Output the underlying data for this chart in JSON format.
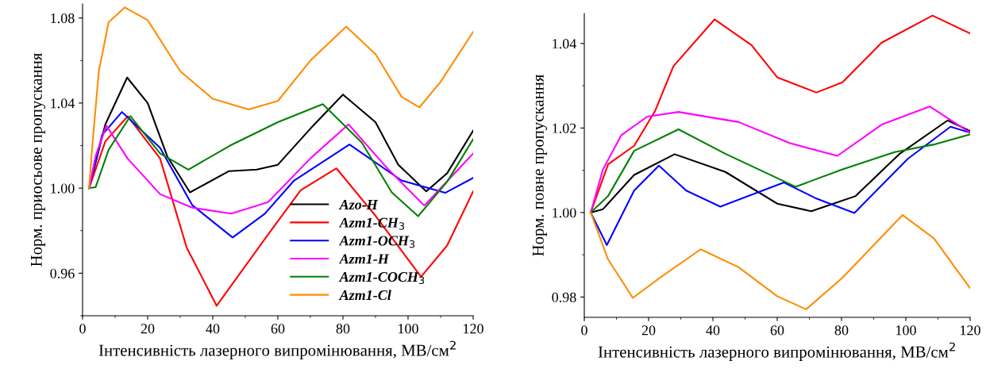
{
  "chart_data": [
    {
      "type": "line",
      "xlabel": "Інтенсивність лазерного випромінювання, МВ/см$^{2}$",
      "ylabel": "Норм. приосьове пропускання",
      "xlim": [
        0,
        120
      ],
      "ylim": [
        0.94,
        1.0866
      ],
      "xticks": [
        0,
        {
          "value": 10,
          "label": null
        },
        20,
        {
          "value": 30,
          "label": null
        },
        40,
        {
          "value": 50,
          "label": null
        },
        60,
        {
          "value": 70,
          "label": null
        },
        80,
        {
          "value": 90,
          "label": null
        },
        100,
        {
          "value": 110,
          "label": null
        },
        120
      ],
      "yticks": [
        {
          "value": 0.94,
          "label": null
        },
        {
          "value": 0.96,
          "label": "0.96"
        },
        {
          "value": 0.98,
          "label": null
        },
        {
          "value": 1.0,
          "label": "1.00"
        },
        {
          "value": 1.02,
          "label": null
        },
        {
          "value": 1.04,
          "label": "1.04"
        },
        {
          "value": 1.06,
          "label": null
        },
        {
          "value": 1.08,
          "label": "1.08"
        }
      ],
      "grid": false,
      "legend": "bottom center",
      "line_style": "solid",
      "marker": "none",
      "series": [
        {
          "name": "Azo-H",
          "color": "#000000",
          "x": [
            2,
            7,
            13.7,
            20,
            26,
            33,
            45,
            53.5,
            60,
            70,
            80,
            90,
            97,
            105.6,
            112,
            120
          ],
          "values": [
            1.0,
            1.03,
            1.052,
            1.04,
            1.015,
            0.998,
            1.008,
            1.0087,
            1.011,
            1.028,
            1.044,
            1.031,
            1.011,
            0.9985,
            1.007,
            1.027
          ]
        },
        {
          "name": "Azm1-CH$_{3}$",
          "color": "#ff0000",
          "x": [
            2,
            7,
            13.9,
            23.8,
            32,
            41.2,
            56.9,
            67,
            78,
            90,
            104,
            112,
            120
          ],
          "values": [
            1.0,
            1.022,
            1.0338,
            1.014,
            0.972,
            0.9447,
            0.978,
            0.999,
            1.0093,
            0.987,
            0.9583,
            0.973,
            0.9985
          ]
        },
        {
          "name": "Azm1-OCH$_{3}$",
          "color": "#0000ff",
          "x": [
            2,
            6,
            12.1,
            23.8,
            33.7,
            46.1,
            56,
            65,
            82,
            98,
            111.4,
            120
          ],
          "values": [
            1.0,
            1.025,
            1.0358,
            1.019,
            0.992,
            0.9768,
            0.988,
            1.0036,
            1.0205,
            1.0036,
            0.9978,
            1.0048
          ]
        },
        {
          "name": "Azm1-H",
          "color": "#ff00ff",
          "x": [
            2,
            4,
            7.3,
            13.9,
            23.8,
            33.7,
            45.7,
            57,
            70,
            81.7,
            94,
            105,
            120
          ],
          "values": [
            1.0,
            1.015,
            1.0294,
            1.0138,
            0.9972,
            0.9908,
            0.988,
            0.9934,
            1.014,
            1.03,
            1.0087,
            0.9918,
            1.0163
          ]
        },
        {
          "name": "Azm1-COCH$_{3}$",
          "color": "#008000",
          "x": [
            2,
            4,
            8,
            14.7,
            23.8,
            32.5,
            45.3,
            60,
            73.8,
            85.8,
            95,
            103.1,
            112,
            120
          ],
          "values": [
            1.0,
            1.0004,
            1.018,
            1.0339,
            1.0163,
            1.0087,
            1.02,
            1.031,
            1.0395,
            1.0214,
            0.998,
            0.9868,
            1.003,
            1.023
          ]
        },
        {
          "name": "Azm1-Cl",
          "color": "#ff8c00",
          "x": [
            2,
            3,
            5,
            8,
            13,
            20,
            30,
            40,
            51,
            60,
            70,
            81,
            90,
            98,
            103.5,
            110,
            120
          ],
          "values": [
            1.0,
            1.02,
            1.055,
            1.078,
            1.085,
            1.079,
            1.055,
            1.042,
            1.037,
            1.041,
            1.06,
            1.076,
            1.063,
            1.043,
            1.038,
            1.05,
            1.0735
          ]
        }
      ]
    },
    {
      "type": "line",
      "xlabel": "Інтенсивність лазерного випромінювання, МВ/см$^{2}$",
      "ylabel": "Норм. повне пропускання",
      "xlim": [
        0,
        120
      ],
      "ylim": [
        0.9752,
        1.0471
      ],
      "xticks": [
        0,
        {
          "value": 10,
          "label": null
        },
        20,
        {
          "value": 30,
          "label": null
        },
        40,
        {
          "value": 50,
          "label": null
        },
        60,
        {
          "value": 70,
          "label": null
        },
        80,
        {
          "value": 90,
          "label": null
        },
        100,
        {
          "value": 110,
          "label": null
        },
        120
      ],
      "yticks": [
        {
          "value": 0.98,
          "label": "0.98"
        },
        {
          "value": 0.99,
          "label": null
        },
        {
          "value": 1.0,
          "label": "1.00"
        },
        {
          "value": 1.01,
          "label": null
        },
        {
          "value": 1.02,
          "label": "1.02"
        },
        {
          "value": 1.03,
          "label": null
        },
        {
          "value": 1.04,
          "label": "1.04"
        }
      ],
      "grid": false,
      "legend": false,
      "line_style": "solid",
      "marker": "none",
      "series": [
        {
          "color": "#000000",
          "x": [
            2,
            5.8,
            15.5,
            28.1,
            43.9,
            60,
            70.6,
            84.4,
            98.1,
            113,
            120
          ],
          "values": [
            1.0,
            1.0008,
            1.0089,
            1.0138,
            1.0096,
            1.0021,
            1.0003,
            1.0039,
            1.0139,
            1.0218,
            1.0193
          ]
        },
        {
          "color": "#ff0000",
          "x": [
            2,
            7.4,
            15.5,
            22,
            27.7,
            40.5,
            52,
            60,
            72.2,
            80.3,
            92.5,
            108.3,
            120
          ],
          "values": [
            1.0,
            1.0114,
            1.0158,
            1.024,
            1.0346,
            1.0457,
            1.0396,
            1.032,
            1.0284,
            1.0308,
            1.0402,
            1.0466,
            1.0424
          ]
        },
        {
          "color": "#0000ff",
          "x": [
            2,
            7.0,
            15.5,
            23.2,
            31.7,
            42.3,
            62.1,
            72.2,
            84,
            100.6,
            113.9,
            120
          ],
          "values": [
            1.0,
            0.9923,
            1.0052,
            1.0111,
            1.0052,
            1.0014,
            1.0071,
            1.0033,
            0.9999,
            1.0127,
            1.0203,
            1.0189
          ]
        },
        {
          "color": "#ff00ff",
          "x": [
            2,
            5.8,
            11.5,
            19.6,
            29.3,
            48,
            64,
            78.7,
            92.5,
            107.4,
            120
          ],
          "values": [
            1.0,
            1.0102,
            1.0183,
            1.0227,
            1.0238,
            1.0214,
            1.0164,
            1.0134,
            1.0208,
            1.0251,
            1.0189
          ]
        },
        {
          "color": "#008000",
          "x": [
            2,
            7.4,
            15.5,
            29.3,
            43.9,
            65.7,
            80.3,
            96.5,
            108.7,
            120
          ],
          "values": [
            1.0,
            1.0039,
            1.0146,
            1.0197,
            1.0139,
            1.0061,
            1.0102,
            1.0143,
            1.0161,
            1.0185
          ]
        },
        {
          "color": "#ff8c00",
          "x": [
            2,
            7.4,
            15.1,
            23.6,
            36.2,
            47.9,
            60,
            69,
            80.3,
            99,
            108.7,
            120
          ],
          "values": [
            1.0,
            0.9889,
            0.9798,
            0.9846,
            0.9913,
            0.9871,
            0.9802,
            0.9771,
            0.9846,
            0.9994,
            0.9939,
            0.9821
          ]
        }
      ]
    }
  ]
}
